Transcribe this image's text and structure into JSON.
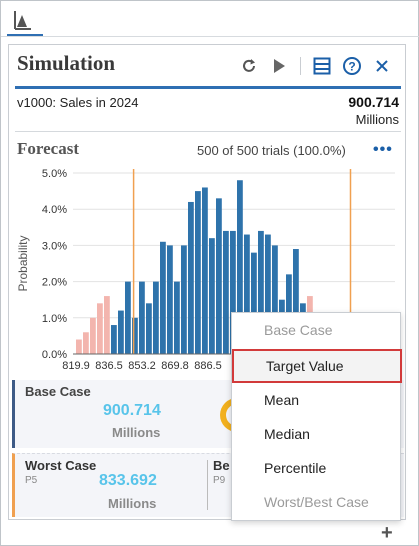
{
  "toolbar": {
    "icon": "chart-icon"
  },
  "panel": {
    "title": "Simulation",
    "icons": [
      "refresh-icon",
      "play-icon",
      "table-icon",
      "help-icon",
      "close-icon"
    ],
    "variable": {
      "name": "v1000: Sales in 2024",
      "value": "900.714",
      "unit": "Millions"
    }
  },
  "forecast": {
    "title": "Forecast",
    "trials": "500 of 500 trials (100.0%)",
    "more": "•••"
  },
  "chart_data": {
    "type": "bar",
    "ylabel": "Probability",
    "xlabel": "",
    "yticks": [
      "0.0%",
      "1.0%",
      "2.0%",
      "3.0%",
      "4.0%",
      "5.0%"
    ],
    "ylim": [
      0,
      5
    ],
    "xticks": [
      "819.9",
      "836.5",
      "853.2",
      "869.8",
      "886.5"
    ],
    "xlim": [
      816,
      910
    ],
    "lower_marker": 836.2,
    "upper_marker": 908.5,
    "series": [
      {
        "values": [
          0.4,
          0.6,
          1.0,
          1.4,
          1.6,
          0.8,
          1.2,
          2.0,
          1.0,
          2.0,
          1.4,
          2.0,
          3.1,
          3.0,
          2.0,
          3.0,
          4.2,
          4.5,
          4.6,
          3.2,
          4.3,
          3.4,
          3.4,
          4.8,
          3.3,
          2.8,
          3.4,
          3.3,
          3.0,
          1.5,
          2.2,
          2.9
        ]
      }
    ],
    "outside_bins": [
      0,
      1,
      2,
      3,
      4
    ],
    "colors": {
      "inside": "#2e73ab",
      "outside": "#f3b5ae",
      "marker": "#f0a050",
      "grid": "#e2e2e2",
      "axis": "#666"
    }
  },
  "cards": {
    "base": {
      "label": "Base Case",
      "value": "900.714",
      "unit": "Millions"
    },
    "worst": {
      "label": "Worst Case",
      "sub": "P5",
      "value": "833.692",
      "unit": "Millions"
    },
    "best": {
      "label": "Be",
      "sub": "P9"
    }
  },
  "menu": {
    "items": [
      {
        "label": "Base Case",
        "state": "disabled"
      },
      {
        "label": "Target Value",
        "state": "selected"
      },
      {
        "label": "Mean",
        "state": "normal"
      },
      {
        "label": "Median",
        "state": "normal"
      },
      {
        "label": "Percentile",
        "state": "normal"
      },
      {
        "label": "Worst/Best Case",
        "state": "disabled"
      }
    ]
  },
  "footer": {
    "add": "+"
  }
}
